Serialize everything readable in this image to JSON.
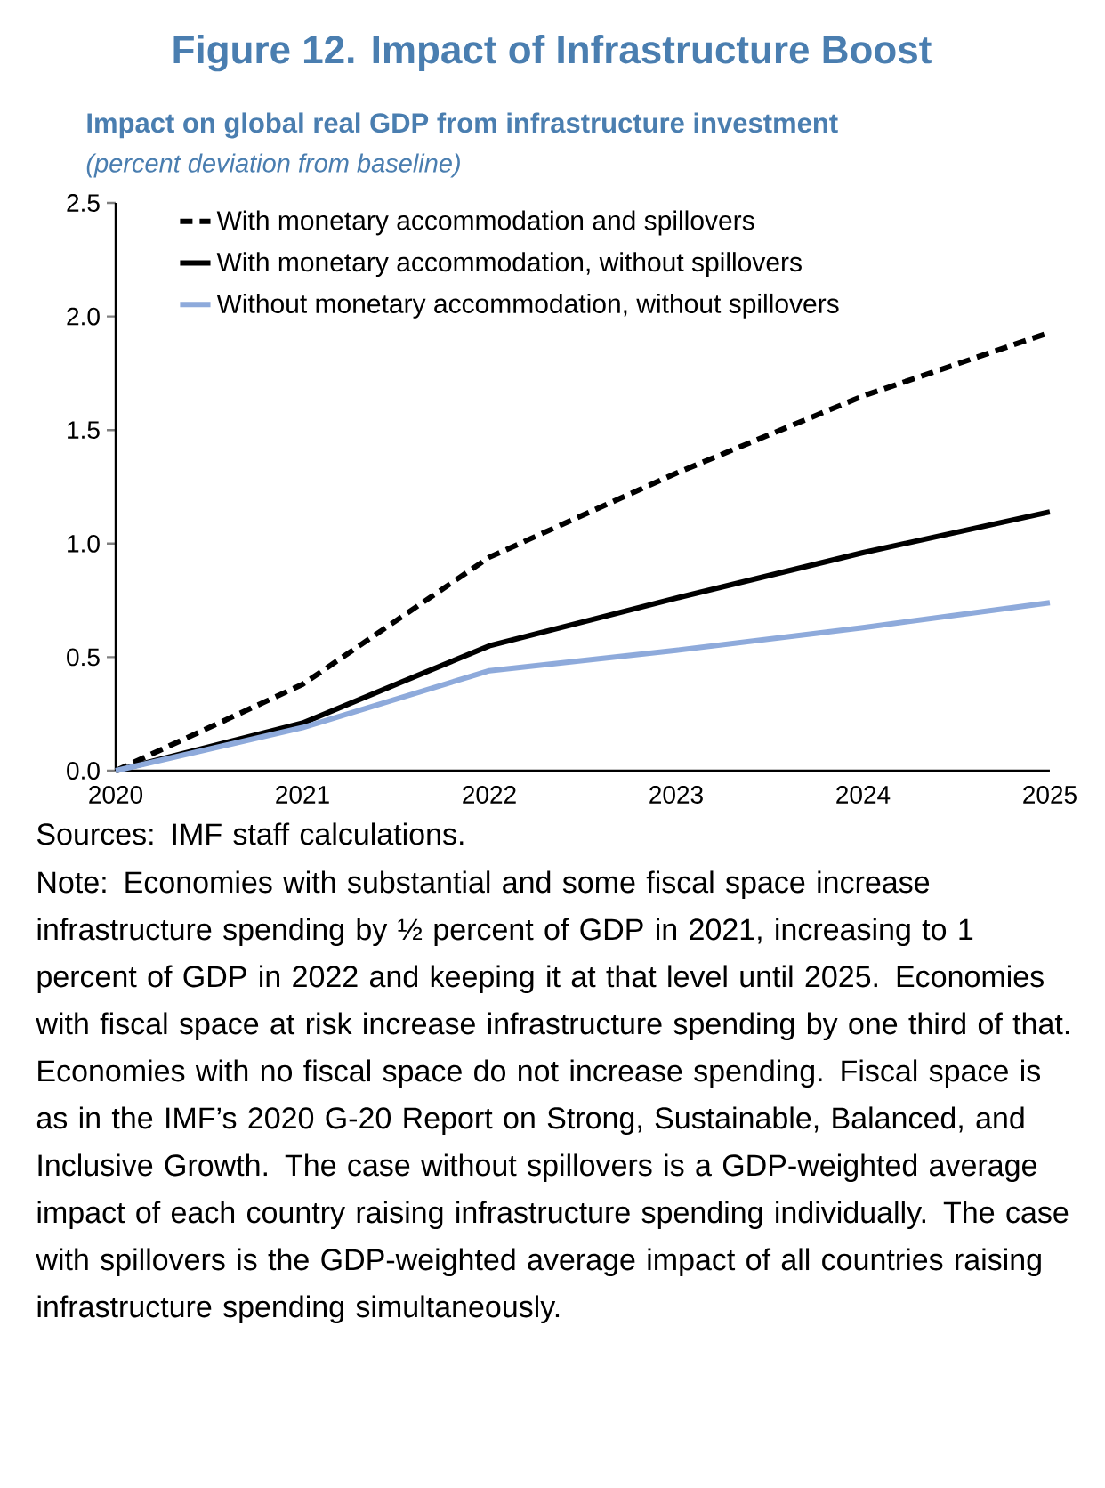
{
  "chart_data": {
    "type": "line",
    "title": "Figure 12. Impact of Infrastructure Boost",
    "subtitle": "Impact on global real GDP from infrastructure investment",
    "ylabel": "(percent deviation from baseline)",
    "x": [
      2020,
      2021,
      2022,
      2023,
      2024,
      2025
    ],
    "xlim": [
      2020,
      2025
    ],
    "xticks": [
      2020,
      2021,
      2022,
      2023,
      2024,
      2025
    ],
    "ylim": [
      0,
      2.5
    ],
    "yticks": [
      {
        "value": 0,
        "label": "0.0"
      },
      {
        "value": 0.5,
        "label": "0.5"
      },
      {
        "value": 1,
        "label": "1.0"
      },
      {
        "value": 1.5,
        "label": "1.5"
      },
      {
        "value": 2,
        "label": "2.0"
      },
      {
        "value": 2.5,
        "label": "2.5"
      }
    ],
    "series": [
      {
        "name": "With monetary accommodation and spillovers",
        "color": "#000000",
        "line_style": "dashed",
        "values": [
          0,
          0.38,
          0.94,
          1.31,
          1.65,
          1.93
        ]
      },
      {
        "name": "With monetary accommodation, without spillovers",
        "color": "#000000",
        "line_style": "solid",
        "values": [
          0,
          0.21,
          0.55,
          0.76,
          0.96,
          1.14
        ]
      },
      {
        "name": "Without monetary accommodation, without spillovers",
        "color": "#8eaadb",
        "line_style": "solid",
        "values": [
          0,
          0.19,
          0.44,
          0.53,
          0.63,
          0.74
        ]
      }
    ],
    "legend": "top left",
    "grid": false,
    "marker": "none",
    "annotations": [
      "Sources: IMF staff calculations.",
      "Note: Economies with substantial and some fiscal space increase infrastructure spending by ½ percent of GDP in 2021, increasing to 1 percent of GDP in 2022 and keeping it at that level until 2025. Economies with fiscal space at risk increase infrastructure spending by one third of that. Economies with no fiscal space do not increase spending. Fiscal space is as in the IMF’s 2020 G-20 Report on Strong, Sustainable, Balanced, and Inclusive Growth. The case without spillovers is a GDP-weighted average impact of each country raising infrastructure spending individually. The case with spillovers is the GDP-weighted average impact of all countries raising infrastructure spending simultaneously."
    ]
  }
}
